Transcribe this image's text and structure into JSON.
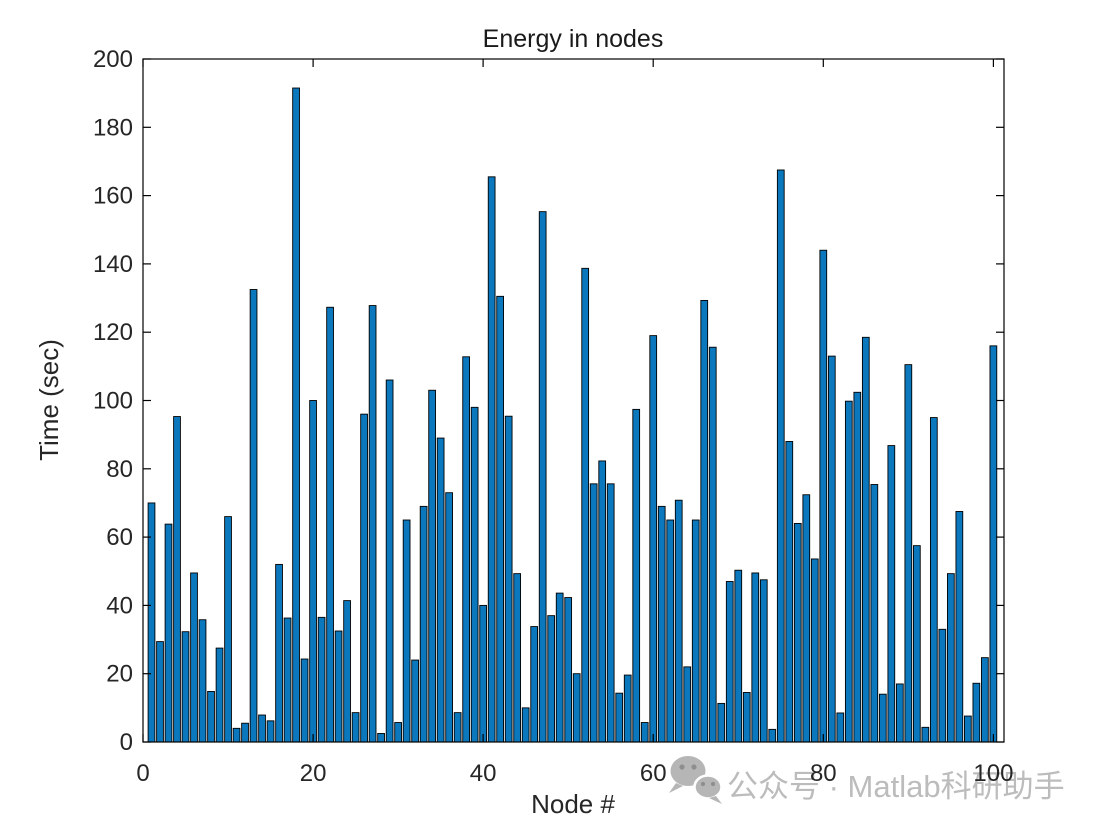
{
  "chart_data": {
    "type": "bar",
    "title": "Energy in nodes",
    "xlabel": "Node #",
    "ylabel": "Time (sec)",
    "xlim": [
      0,
      101.25
    ],
    "ylim": [
      0,
      200
    ],
    "xticks": [
      0,
      20,
      40,
      60,
      80,
      100
    ],
    "yticks": [
      0,
      20,
      40,
      60,
      80,
      100,
      120,
      140,
      160,
      180,
      200
    ],
    "grid": false,
    "legend": "none",
    "box": true,
    "tick_direction": "in",
    "bar_color": "#0b78be",
    "bar_edge_color": "#000000",
    "axis_color": "#000000",
    "tick_label_color": "#262626",
    "x": [
      1,
      2,
      3,
      4,
      5,
      6,
      7,
      8,
      9,
      10,
      11,
      12,
      13,
      14,
      15,
      16,
      17,
      18,
      19,
      20,
      21,
      22,
      23,
      24,
      25,
      26,
      27,
      28,
      29,
      30,
      31,
      32,
      33,
      34,
      35,
      36,
      37,
      38,
      39,
      40,
      41,
      42,
      43,
      44,
      45,
      46,
      47,
      48,
      49,
      50,
      51,
      52,
      53,
      54,
      55,
      56,
      57,
      58,
      59,
      60,
      61,
      62,
      63,
      64,
      65,
      66,
      67,
      68,
      69,
      70,
      71,
      72,
      73,
      74,
      75,
      76,
      77,
      78,
      79,
      80,
      81,
      82,
      83,
      84,
      85,
      86,
      87,
      88,
      89,
      90,
      91,
      92,
      93,
      94,
      95,
      96,
      97,
      98,
      99,
      100
    ],
    "values": [
      70,
      29.4,
      63.8,
      95.3,
      32.3,
      49.5,
      35.8,
      14.8,
      27.5,
      66,
      4,
      5.5,
      132.5,
      7.9,
      6.2,
      52,
      36.3,
      191.5,
      24.3,
      100,
      36.5,
      127.3,
      32.5,
      41.4,
      8.6,
      96,
      127.8,
      2.5,
      106,
      5.7,
      65,
      24,
      69,
      103,
      89,
      73,
      8.6,
      112.8,
      98,
      40,
      165.5,
      130.5,
      95.4,
      49.3,
      10,
      33.8,
      155.3,
      37,
      43.6,
      42.3,
      20,
      138.7,
      75.6,
      82.3,
      75.6,
      14.3,
      19.6,
      97.4,
      5.7,
      119,
      69,
      65,
      70.8,
      22,
      65,
      129.3,
      115.6,
      11.3,
      47,
      50.3,
      14.5,
      49.5,
      47.5,
      3.7,
      167.5,
      88,
      64,
      72.4,
      53.6,
      144,
      113,
      8.5,
      99.8,
      102.4,
      118.5,
      75.4,
      14,
      86.8,
      17,
      110.5,
      57.5,
      4.3,
      95,
      33,
      49.3,
      67.5,
      7.6,
      17.2,
      24.7,
      116
    ]
  },
  "watermark": {
    "text": "公众号 · Matlab科研助手",
    "icon": "wechat-icon",
    "text_color": "#bcbcbc",
    "icon_color": "#b6b6b6",
    "icon_eye_color": "#8e8e8e"
  }
}
